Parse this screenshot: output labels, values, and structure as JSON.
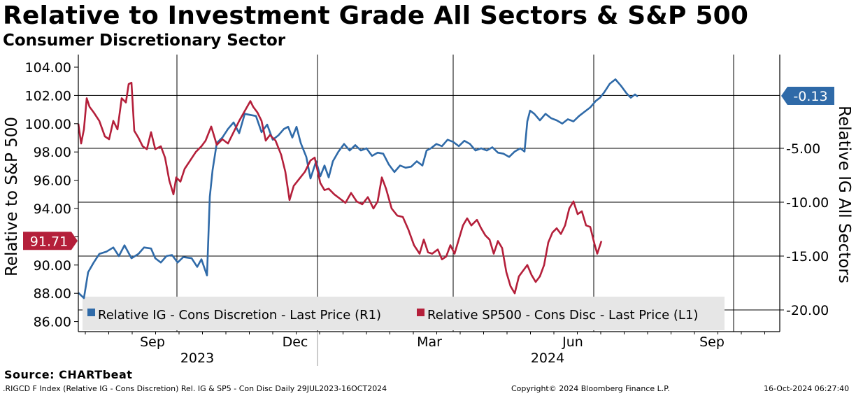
{
  "title": "Relative to Investment Grade All Sectors & S&P 500",
  "subtitle": "Consumer Discretionary Sector",
  "source": "Source: CHARTbeat",
  "footer": {
    "index_info": ".RIGCD F Index (Relative IG - Cons Discretion) Rel. IG & SP5 - Con Disc  Daily 29JUL2023-16OCT2024",
    "copyright": "Copyright© 2024 Bloomberg Finance L.P.",
    "timestamp": "16-Oct-2024 06:27:40"
  },
  "colors": {
    "ig": "#2f6aa8",
    "sp": "#b41f3a",
    "grid": "#000000"
  },
  "chart_data": {
    "type": "line",
    "title": "Relative to Investment Grade All Sectors & S&P 500",
    "subtitle": "Consumer Discretionary Sector",
    "x_range": [
      "2023-07-29",
      "2024-10-16"
    ],
    "x_ticks": [
      "Sep",
      "Dec",
      "Mar",
      "Jun",
      "Sep"
    ],
    "x_years": [
      "2023",
      "2024"
    ],
    "y_left": {
      "label": "Relative to S&P 500",
      "range": [
        86,
        105
      ],
      "ticks": [
        "86.00",
        "88.00",
        "90.00",
        "92.00",
        "94.00",
        "96.00",
        "98.00",
        "100.00",
        "102.00",
        "104.00"
      ]
    },
    "y_right": {
      "label": "Relative IG All Sectors",
      "range": [
        -21,
        4.1
      ],
      "ticks": [
        "-20.00",
        "-15.00",
        "-10.00",
        "-5.00"
      ]
    },
    "legend": [
      "Relative IG - Cons Discretion - Last Price (R1)",
      "Relative SP500 - Cons Disc - Last Price (L1)"
    ],
    "last_values": {
      "ig": "-0.13",
      "sp": "91.71"
    },
    "series": [
      {
        "name": "Relative IG - Cons Discretion - Last Price (R1)",
        "axis": "right",
        "points": [
          [
            0,
            -18.4
          ],
          [
            8,
            -18.9
          ],
          [
            14,
            -16.5
          ],
          [
            22,
            -15.6
          ],
          [
            30,
            -14.8
          ],
          [
            40,
            -14.6
          ],
          [
            50,
            -14.2
          ],
          [
            58,
            -15.0
          ],
          [
            66,
            -14.0
          ],
          [
            76,
            -15.2
          ],
          [
            86,
            -14.8
          ],
          [
            94,
            -14.2
          ],
          [
            104,
            -14.3
          ],
          [
            110,
            -15.2
          ],
          [
            118,
            -15.6
          ],
          [
            126,
            -15.0
          ],
          [
            134,
            -14.9
          ],
          [
            142,
            -15.6
          ],
          [
            150,
            -15.1
          ],
          [
            162,
            -15.2
          ],
          [
            170,
            -16.0
          ],
          [
            176,
            -15.3
          ],
          [
            184,
            -16.8
          ],
          [
            188,
            -9.5
          ],
          [
            192,
            -7.0
          ],
          [
            198,
            -4.5
          ],
          [
            206,
            -4.0
          ],
          [
            214,
            -3.2
          ],
          [
            222,
            -2.6
          ],
          [
            230,
            -3.6
          ],
          [
            238,
            -1.8
          ],
          [
            246,
            -1.9
          ],
          [
            254,
            -2.0
          ],
          [
            262,
            -3.5
          ],
          [
            270,
            -2.8
          ],
          [
            278,
            -4.2
          ],
          [
            286,
            -3.8
          ],
          [
            294,
            -3.2
          ],
          [
            300,
            -3.0
          ],
          [
            306,
            -4.0
          ],
          [
            312,
            -3.0
          ],
          [
            318,
            -4.5
          ],
          [
            326,
            -5.8
          ],
          [
            332,
            -7.8
          ],
          [
            340,
            -6.2
          ],
          [
            346,
            -7.6
          ],
          [
            352,
            -6.6
          ],
          [
            358,
            -7.7
          ],
          [
            364,
            -6.2
          ],
          [
            372,
            -5.3
          ],
          [
            380,
            -4.6
          ],
          [
            388,
            -5.2
          ],
          [
            396,
            -4.7
          ],
          [
            404,
            -5.2
          ],
          [
            412,
            -5.0
          ],
          [
            420,
            -5.7
          ],
          [
            428,
            -5.4
          ],
          [
            436,
            -5.5
          ],
          [
            444,
            -6.5
          ],
          [
            452,
            -7.2
          ],
          [
            460,
            -6.6
          ],
          [
            468,
            -6.8
          ],
          [
            476,
            -6.7
          ],
          [
            484,
            -6.2
          ],
          [
            492,
            -6.6
          ],
          [
            498,
            -5.2
          ],
          [
            504,
            -5.0
          ],
          [
            512,
            -4.6
          ],
          [
            520,
            -4.8
          ],
          [
            528,
            -4.2
          ],
          [
            536,
            -4.4
          ],
          [
            544,
            -4.8
          ],
          [
            552,
            -4.3
          ],
          [
            560,
            -4.6
          ],
          [
            568,
            -5.2
          ],
          [
            576,
            -5.0
          ],
          [
            584,
            -5.2
          ],
          [
            592,
            -4.9
          ],
          [
            600,
            -5.4
          ],
          [
            608,
            -5.5
          ],
          [
            616,
            -5.8
          ],
          [
            624,
            -5.3
          ],
          [
            632,
            -5.0
          ],
          [
            638,
            -5.3
          ],
          [
            642,
            -2.5
          ],
          [
            646,
            -1.5
          ],
          [
            652,
            -1.8
          ],
          [
            660,
            -2.4
          ],
          [
            668,
            -1.8
          ],
          [
            676,
            -2.2
          ],
          [
            684,
            -2.4
          ],
          [
            692,
            -2.7
          ],
          [
            700,
            -2.3
          ],
          [
            708,
            -2.5
          ],
          [
            716,
            -2.0
          ],
          [
            724,
            -1.6
          ],
          [
            732,
            -1.2
          ],
          [
            740,
            -0.6
          ],
          [
            746,
            -0.3
          ],
          [
            752,
            0.2
          ],
          [
            760,
            1.0
          ],
          [
            768,
            1.4
          ],
          [
            776,
            0.8
          ],
          [
            784,
            0.1
          ],
          [
            790,
            -0.3
          ],
          [
            796,
            0.0
          ],
          [
            800,
            -0.2
          ]
        ]
      },
      {
        "name": "Relative SP500 - Cons Disc - Last Price (L1)",
        "axis": "left",
        "points": [
          [
            0,
            100.0
          ],
          [
            4,
            98.6
          ],
          [
            8,
            99.6
          ],
          [
            12,
            101.8
          ],
          [
            16,
            101.2
          ],
          [
            22,
            100.8
          ],
          [
            30,
            100.2
          ],
          [
            38,
            99.1
          ],
          [
            44,
            98.9
          ],
          [
            50,
            100.2
          ],
          [
            56,
            99.6
          ],
          [
            62,
            101.8
          ],
          [
            68,
            101.5
          ],
          [
            72,
            102.8
          ],
          [
            76,
            102.9
          ],
          [
            80,
            99.5
          ],
          [
            86,
            99.0
          ],
          [
            92,
            98.4
          ],
          [
            98,
            98.2
          ],
          [
            104,
            99.4
          ],
          [
            110,
            98.2
          ],
          [
            118,
            98.4
          ],
          [
            124,
            97.6
          ],
          [
            130,
            96.0
          ],
          [
            136,
            95.0
          ],
          [
            140,
            96.2
          ],
          [
            146,
            95.9
          ],
          [
            152,
            96.8
          ],
          [
            160,
            97.4
          ],
          [
            168,
            98.0
          ],
          [
            176,
            98.4
          ],
          [
            182,
            98.8
          ],
          [
            190,
            99.8
          ],
          [
            198,
            98.5
          ],
          [
            206,
            98.9
          ],
          [
            214,
            98.6
          ],
          [
            222,
            99.4
          ],
          [
            230,
            100.2
          ],
          [
            238,
            100.9
          ],
          [
            246,
            101.6
          ],
          [
            250,
            101.2
          ],
          [
            256,
            100.8
          ],
          [
            262,
            100.2
          ],
          [
            268,
            98.8
          ],
          [
            274,
            99.2
          ],
          [
            282,
            98.8
          ],
          [
            290,
            97.8
          ],
          [
            296,
            96.6
          ],
          [
            302,
            94.6
          ],
          [
            308,
            95.6
          ],
          [
            316,
            96.1
          ],
          [
            324,
            96.6
          ],
          [
            332,
            97.4
          ],
          [
            338,
            97.6
          ],
          [
            346,
            95.8
          ],
          [
            352,
            95.3
          ],
          [
            358,
            95.4
          ],
          [
            366,
            95.0
          ],
          [
            374,
            94.7
          ],
          [
            382,
            94.4
          ],
          [
            390,
            95.1
          ],
          [
            398,
            94.5
          ],
          [
            406,
            94.3
          ],
          [
            414,
            94.8
          ],
          [
            422,
            94.0
          ],
          [
            428,
            94.5
          ],
          [
            434,
            96.2
          ],
          [
            440,
            95.4
          ],
          [
            448,
            94.0
          ],
          [
            456,
            93.5
          ],
          [
            464,
            93.4
          ],
          [
            472,
            92.5
          ],
          [
            480,
            91.4
          ],
          [
            488,
            90.8
          ],
          [
            494,
            91.8
          ],
          [
            500,
            90.9
          ],
          [
            506,
            90.8
          ],
          [
            514,
            91.1
          ],
          [
            520,
            90.4
          ],
          [
            526,
            90.6
          ],
          [
            532,
            91.4
          ],
          [
            538,
            90.8
          ],
          [
            544,
            91.8
          ],
          [
            550,
            92.8
          ],
          [
            556,
            93.3
          ],
          [
            562,
            92.8
          ],
          [
            570,
            93.2
          ],
          [
            576,
            92.6
          ],
          [
            582,
            92.1
          ],
          [
            588,
            91.8
          ],
          [
            594,
            90.8
          ],
          [
            600,
            91.7
          ],
          [
            606,
            91.2
          ],
          [
            612,
            89.5
          ],
          [
            618,
            88.5
          ],
          [
            624,
            88.0
          ],
          [
            630,
            89.2
          ],
          [
            636,
            89.6
          ],
          [
            642,
            90.0
          ],
          [
            648,
            89.3
          ],
          [
            654,
            88.8
          ],
          [
            660,
            89.2
          ],
          [
            666,
            90.0
          ],
          [
            672,
            91.6
          ],
          [
            678,
            92.3
          ],
          [
            684,
            92.6
          ],
          [
            690,
            92.2
          ],
          [
            696,
            92.8
          ],
          [
            702,
            94.0
          ],
          [
            708,
            94.5
          ],
          [
            714,
            93.6
          ],
          [
            720,
            93.8
          ],
          [
            726,
            92.8
          ],
          [
            732,
            92.7
          ],
          [
            738,
            91.5
          ],
          [
            742,
            90.8
          ],
          [
            748,
            91.7
          ]
        ]
      }
    ]
  }
}
